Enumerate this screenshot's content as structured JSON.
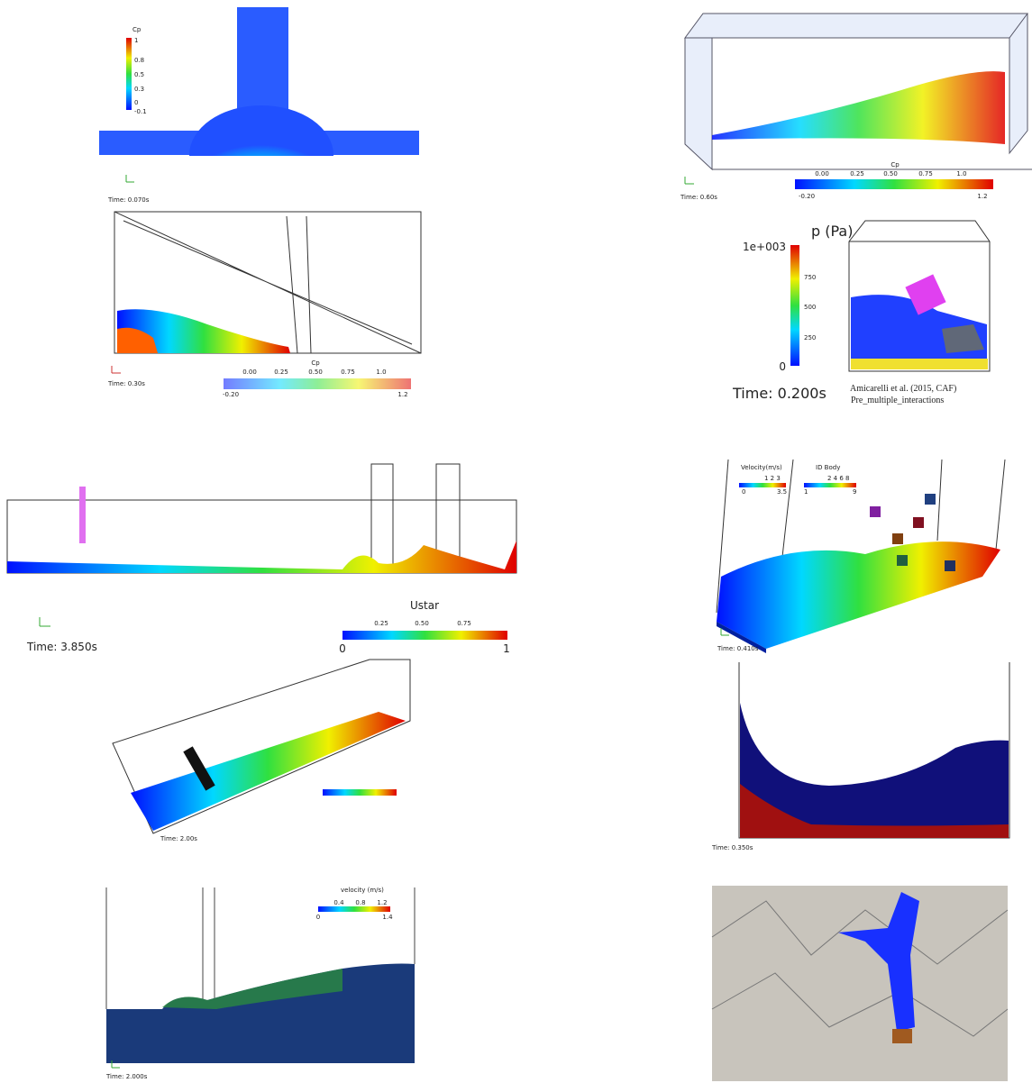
{
  "panels": [
    {
      "colorbar_title": "Cp",
      "colorbar_ticks": [
        "1",
        "0.8",
        "0.5",
        "0.3",
        "0",
        "-0.1"
      ],
      "time": "Time: 0.070s"
    },
    {
      "colorbar_title": "Cp",
      "colorbar_ticks_top": [
        "0.00",
        "0.25",
        "0.50",
        "0.75",
        "1.0"
      ],
      "colorbar_ticks_bottom": [
        "-0.20",
        "1.2"
      ],
      "time": "Time: 0.60s"
    },
    {
      "colorbar_title": "Cp",
      "colorbar_ticks_top": [
        "0.00",
        "0.25",
        "0.50",
        "0.75",
        "1.0"
      ],
      "colorbar_ticks_bottom": [
        "-0.20",
        "1.2"
      ],
      "time": "Time: 0.30s"
    },
    {
      "colorbar_title": "p (Pa)",
      "colorbar_ticks": [
        "1e+003",
        "750",
        "500",
        "250",
        "0"
      ],
      "time": "Time: 0.200s",
      "caption": [
        "Amicarelli et al. (2015, CAF)",
        "Pre_multiple_interactions"
      ]
    },
    {
      "colorbar_title": "Ustar",
      "colorbar_ticks_top": [
        "0.25",
        "0.50",
        "0.75"
      ],
      "colorbar_ticks_bottom": [
        "0",
        "1"
      ],
      "time": "Time: 3.850s"
    },
    {
      "colorbar_title": "Velocity(m/s)",
      "colorbar_ticks_top": "1   2   3",
      "colorbar_ticks_bottom": [
        "0",
        "3.5"
      ],
      "second_colorbar_title": "ID Body",
      "second_colorbar_ticks_top": "2  4  6  8",
      "second_colorbar_ticks_bottom": [
        "1",
        "9"
      ],
      "time": "Time: 0.410s"
    },
    {
      "time": "Time: 2.00s"
    },
    {
      "time": "Time: 0.350s"
    },
    {
      "colorbar_title": "velocity (m/s)",
      "colorbar_ticks_top": [
        "0.4",
        "0.8",
        "1.2"
      ],
      "colorbar_ticks_bottom": [
        "0",
        "1.4"
      ],
      "time": "Time: 2.000s"
    }
  ]
}
